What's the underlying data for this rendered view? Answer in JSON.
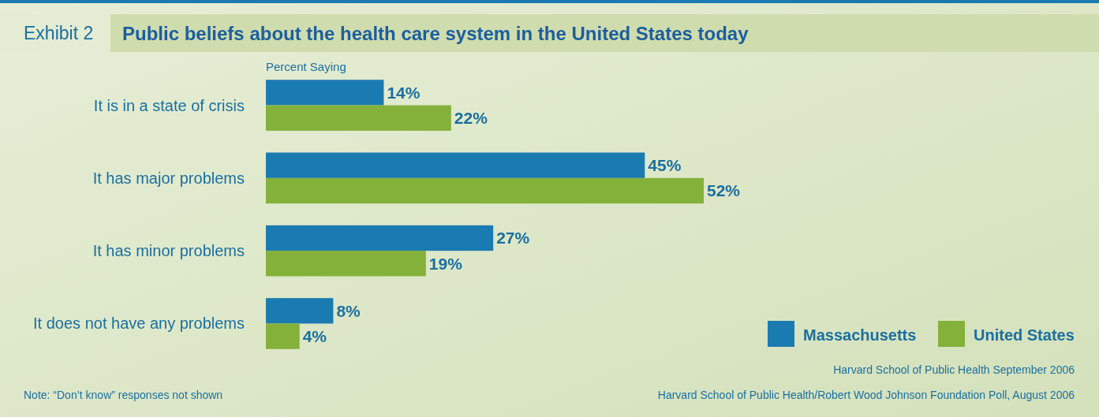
{
  "chart_data": {
    "type": "bar",
    "orientation": "horizontal",
    "title": "Public beliefs about the health care system in the United States today",
    "subtitle": "Exhibit 2",
    "xlabel": "Percent Saying",
    "categories": [
      "It is in a state of crisis",
      "It has major problems",
      "It has minor problems",
      "It does not have any problems"
    ],
    "series": [
      {
        "name": "Massachusetts",
        "color": "#1a7bb0",
        "values": [
          14,
          45,
          27,
          8
        ],
        "value_labels": [
          "14%",
          "45%",
          "27%",
          "8%"
        ]
      },
      {
        "name": "United States",
        "color": "#84b13a",
        "values": [
          22,
          52,
          19,
          4
        ],
        "value_labels": [
          "22%",
          "52%",
          "19%",
          "4%"
        ]
      }
    ],
    "xlim": [
      0,
      52
    ],
    "tick_labels": "y",
    "legend": "bottom right",
    "annotations": [
      "Harvard School of Public Health September 2006",
      "Harvard School of Public Health/Robert Wood Johnson Foundation Poll, August 2006",
      "Note: “Don’t know” responses not shown"
    ]
  }
}
